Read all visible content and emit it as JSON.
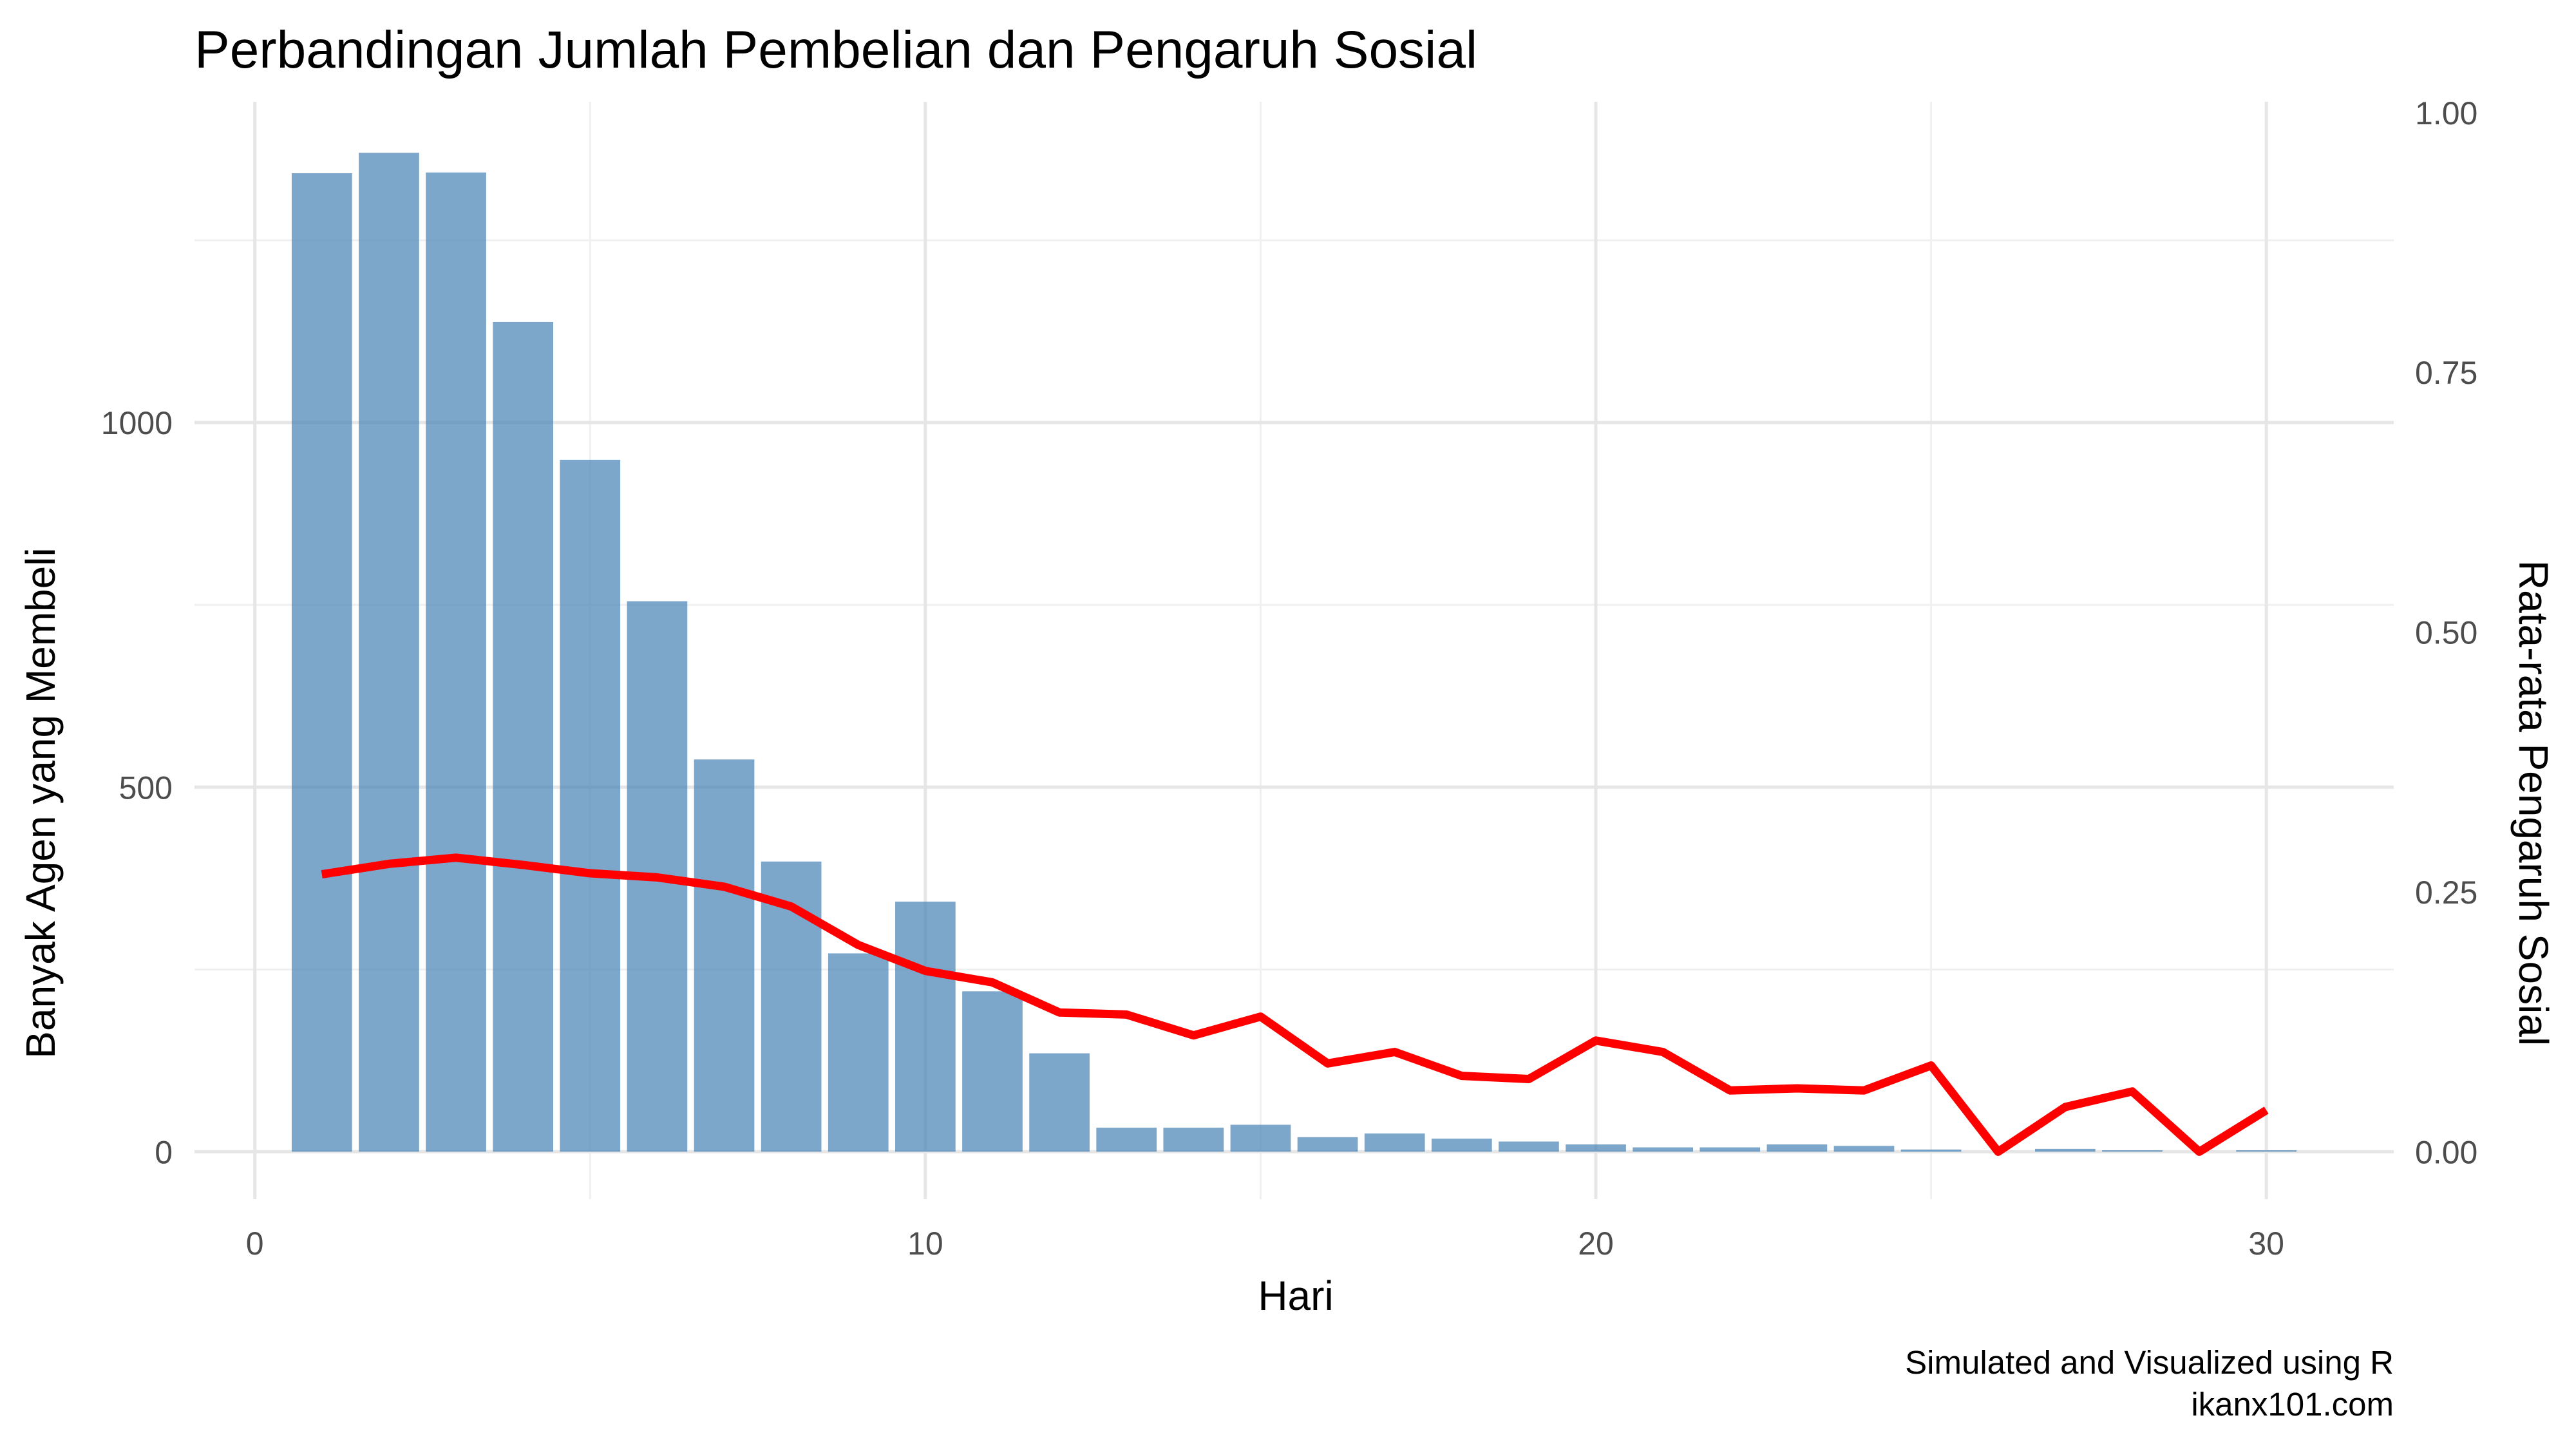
{
  "chart_data": {
    "type": "bar",
    "title": "Perbandingan Jumlah Pembelian dan Pengaruh Sosial",
    "xlabel": "Hari",
    "ylabel": "Banyak Agen yang Membeli",
    "y2label": "Rata-rata Pengaruh Sosial",
    "xlim": [
      -0.9,
      31.9
    ],
    "ylim": [
      -65,
      1440
    ],
    "y2lim": [
      -0.0456,
      1.0104
    ],
    "x_ticks": [
      0,
      10,
      20,
      30
    ],
    "y_ticks": [
      0,
      500,
      1000
    ],
    "y2_ticks": [
      0,
      0.25,
      0.5,
      0.75,
      1.0
    ],
    "y2_tick_labels": [
      "0.00",
      "0.25",
      "0.50",
      "0.75",
      "1.00"
    ],
    "grid": true,
    "colors": {
      "bars": "#4682b4",
      "line": "#ff0000"
    },
    "x": [
      1,
      2,
      3,
      4,
      5,
      6,
      7,
      8,
      9,
      10,
      11,
      12,
      13,
      14,
      15,
      16,
      17,
      18,
      19,
      20,
      21,
      22,
      23,
      24,
      25,
      26,
      27,
      28,
      29,
      30
    ],
    "series": [
      {
        "type": "bar",
        "axis": "left",
        "values": [
          1342,
          1370,
          1343,
          1138,
          949,
          755,
          538,
          398,
          272,
          343,
          220,
          135,
          33,
          33,
          37,
          20,
          25,
          18,
          14,
          10,
          6,
          6,
          10,
          8,
          3,
          0,
          4,
          2,
          0,
          2
        ]
      },
      {
        "type": "line",
        "axis": "right",
        "values": [
          0.267,
          0.277,
          0.283,
          0.276,
          0.268,
          0.264,
          0.255,
          0.236,
          0.199,
          0.174,
          0.163,
          0.134,
          0.132,
          0.112,
          0.13,
          0.085,
          0.096,
          0.073,
          0.07,
          0.107,
          0.096,
          0.059,
          0.061,
          0.059,
          0.083,
          0.0,
          0.043,
          0.058,
          0.0,
          0.04
        ]
      }
    ]
  },
  "caption": {
    "line1": "Simulated and Visualized using R",
    "line2": "ikanx101.com"
  }
}
